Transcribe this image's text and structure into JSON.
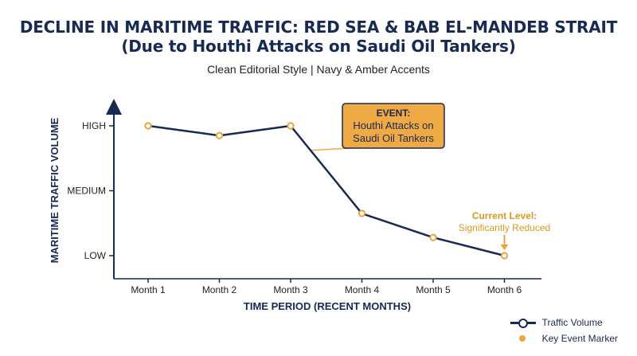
{
  "title_line1": "DECLINE IN MARITIME TRAFFIC: RED SEA & BAB EL-MANDEB STRAIT",
  "title_line2": "(Due to Houthi Attacks on Saudi Oil Tankers)",
  "subtitle": "Clean Editorial Style | Navy & Amber Accents",
  "colors": {
    "navy": "#162a52",
    "amber": "#e8a53a",
    "amber_text": "#d89a1e",
    "event_fill": "#efaa45"
  },
  "chart_data": {
    "type": "line",
    "xlabel": "TIME PERIOD (RECENT MONTHS)",
    "ylabel": "MARITIME TRAFFIC VOLUME",
    "categories": [
      "Month 1",
      "Month 2",
      "Month 3",
      "Month 4",
      "Month 5",
      "Month 6"
    ],
    "y_ticks": [
      {
        "label": "LOW",
        "value": 1
      },
      {
        "label": "MEDIUM",
        "value": 2
      },
      {
        "label": "HIGH",
        "value": 3
      }
    ],
    "ylim": [
      0.8,
      3.25
    ],
    "grid": false,
    "series": [
      {
        "name": "Traffic Volume",
        "values": [
          3.0,
          2.85,
          3.0,
          1.65,
          1.28,
          1.0
        ]
      }
    ],
    "event_annotation": {
      "heading": "EVENT:",
      "line1": "Houthi Attacks on",
      "line2": "Saudi Oil Tankers",
      "segment_from": 2,
      "segment_to": 3
    },
    "current_annotation": {
      "line1": "Current Level:",
      "line2": "Significantly Reduced",
      "point_index": 5
    },
    "legend": {
      "position": "bottom-right",
      "items": [
        "Traffic Volume",
        "Key Event Marker"
      ]
    }
  }
}
